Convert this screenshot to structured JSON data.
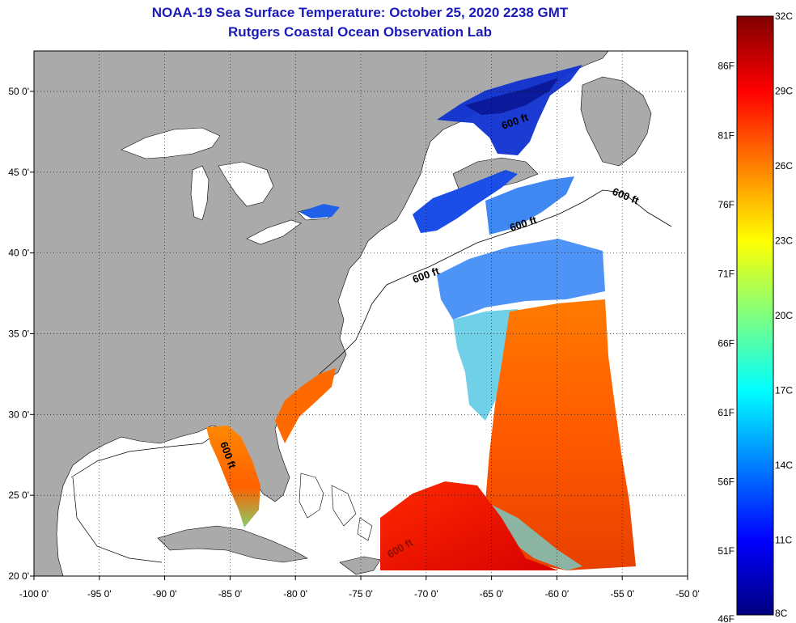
{
  "title": "NOAA-19 Sea Surface Temperature:  October 25, 2020 2238 GMT",
  "subtitle": "Rutgers Coastal Ocean Observation Lab",
  "map": {
    "lon_range": [
      -100,
      -50
    ],
    "lat_range": [
      20,
      52.5
    ],
    "lon_ticks": [
      "-100 0'",
      "-95 0'",
      "-90 0'",
      "-85 0'",
      "-80 0'",
      "-75 0'",
      "-70 0'",
      "-65 0'",
      "-60 0'",
      "-55 0'",
      "-50 0'"
    ],
    "lat_ticks": [
      "20 0'",
      "25 0'",
      "30 0'",
      "35 0'",
      "40 0'",
      "45 0'",
      "50 0'"
    ],
    "lon_values": [
      -100,
      -95,
      -90,
      -85,
      -80,
      -75,
      -70,
      -65,
      -60,
      -55,
      -50
    ],
    "lat_values": [
      20,
      25,
      30,
      35,
      40,
      45,
      50
    ],
    "grid": true,
    "contour_labels": [
      "600 ft",
      "600 ft",
      "600 ft",
      "600 ft",
      "600 ft",
      "600 ft"
    ],
    "colors": {
      "land": "#aaaaaa",
      "ocean": "#ffffff",
      "coast": "#000000"
    }
  },
  "colorbar": {
    "celsius_labels": [
      "32C",
      "29C",
      "26C",
      "23C",
      "20C",
      "17C",
      "14C",
      "11C",
      "8C"
    ],
    "celsius_values": [
      32,
      29,
      26,
      23,
      20,
      17,
      14,
      11,
      8
    ],
    "fahrenheit_labels": [
      "86F",
      "81F",
      "76F",
      "71F",
      "66F",
      "61F",
      "56F",
      "51F",
      "46F"
    ],
    "fahrenheit_values": [
      86,
      81,
      76,
      71,
      66,
      61,
      56,
      51,
      46
    ],
    "range_c": [
      8,
      32
    ],
    "colors": [
      "#00007f",
      "#0000ff",
      "#007fff",
      "#00ffff",
      "#7fff7f",
      "#ffff00",
      "#ff7f00",
      "#ff0000",
      "#7f0000"
    ]
  }
}
